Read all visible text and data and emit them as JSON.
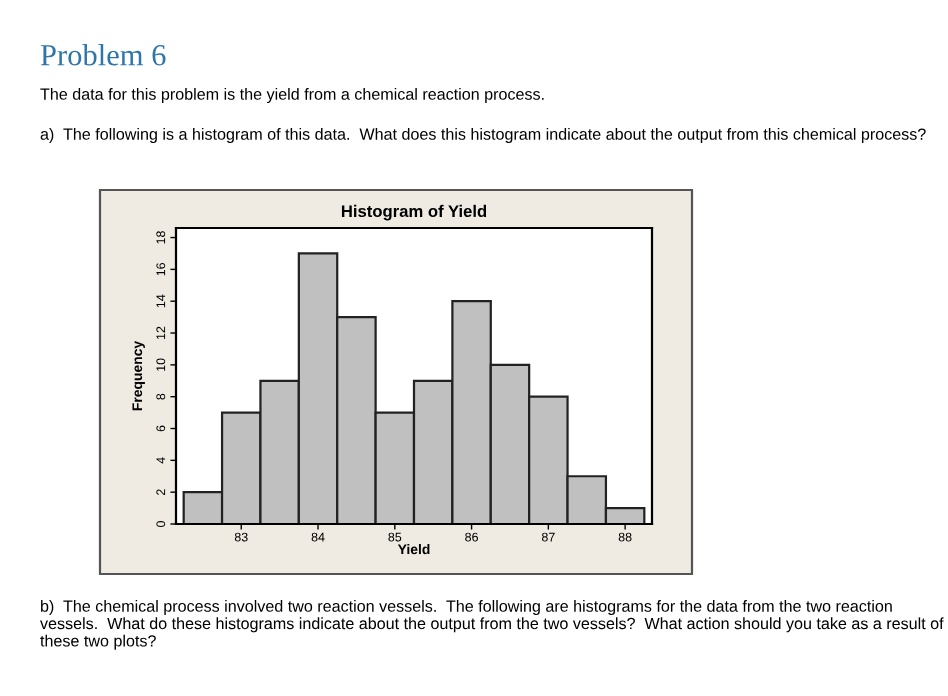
{
  "chart_data": {
    "type": "histogram",
    "title": "Histogram of Yield",
    "xlabel": "Yield",
    "ylabel": "Frequency",
    "bins": [
      82.25,
      82.75,
      83.25,
      83.75,
      84.25,
      84.75,
      85.25,
      85.75,
      86.25,
      86.75,
      87.25,
      87.75,
      88.25
    ],
    "values": [
      2,
      7,
      9,
      17,
      13,
      7,
      9,
      14,
      10,
      8,
      3,
      1
    ],
    "color": "#c0c0c0",
    "xlim": [
      82.15,
      88.35
    ],
    "xticks": [
      83,
      84,
      85,
      86,
      87,
      88
    ],
    "ylim": [
      0,
      18.6
    ],
    "yticks": [
      0,
      2,
      4,
      6,
      8,
      10,
      12,
      14,
      16,
      18
    ],
    "grid": false,
    "annotations": [
      "Problem 6",
      "The data for this problem is the yield from a chemical reaction process.",
      "a)  The following is a histogram of this data.  What does this histogram indicate about the output from this chemical process?",
      "b)  The chemical process involved two reaction vessels.  The following are histograms for the data from the two reaction vessels.  What do these histograms indicate about the output from the two vessels?  What action should you take as a result of these two plots?"
    ]
  }
}
